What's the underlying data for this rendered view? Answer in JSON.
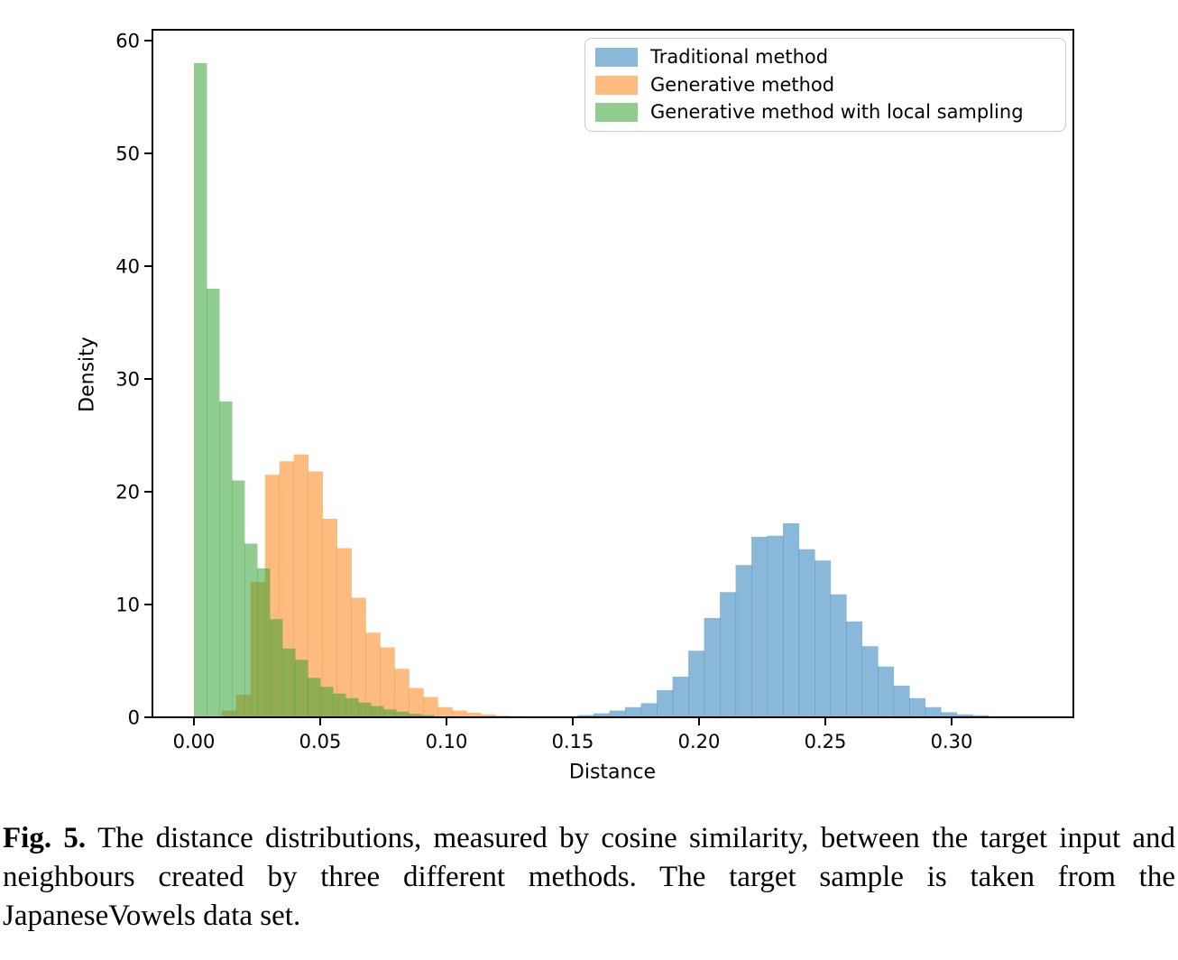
{
  "figure": {
    "caption_label": "Fig. 5.",
    "caption_text": "The distance distributions, measured by cosine similarity, between the target input and neighbours created by three different methods. The target sample is taken from the JapaneseVowels data set."
  },
  "chart_data": {
    "type": "bar",
    "variant": "overlaid-histograms",
    "title": "",
    "xlabel": "Distance",
    "ylabel": "Density",
    "xlim": [
      -0.016,
      0.348
    ],
    "ylim": [
      0,
      60
    ],
    "grid": false,
    "legend_position": "upper right",
    "x_ticks": [
      0.0,
      0.05,
      0.1,
      0.15,
      0.2,
      0.25,
      0.3
    ],
    "x_tick_labels": [
      "0.00",
      "0.05",
      "0.10",
      "0.15",
      "0.20",
      "0.25",
      "0.30"
    ],
    "y_ticks": [
      0,
      10,
      20,
      30,
      40,
      50,
      60
    ],
    "y_tick_labels": [
      "0",
      "10",
      "20",
      "30",
      "40",
      "50",
      "60"
    ],
    "series": [
      {
        "name": "Traditional method",
        "color": "#1f77b4",
        "alpha": 0.52,
        "bin_start": 0.152,
        "bin_width": 0.00625,
        "densities": [
          0.2,
          0.35,
          0.6,
          0.9,
          1.25,
          2.4,
          3.6,
          5.9,
          8.8,
          11.1,
          13.5,
          16.0,
          16.1,
          17.2,
          14.9,
          13.9,
          10.9,
          8.5,
          6.3,
          4.5,
          2.8,
          1.7,
          0.9,
          0.45,
          0.26,
          0.18
        ]
      },
      {
        "name": "Generative method",
        "color": "#ff7f0e",
        "alpha": 0.52,
        "bin_start": 0.011,
        "bin_width": 0.0057,
        "densities": [
          0.6,
          2.0,
          12.0,
          21.5,
          22.7,
          23.3,
          21.8,
          17.6,
          15.0,
          10.6,
          7.5,
          6.2,
          4.3,
          2.6,
          1.8,
          0.9,
          0.6,
          0.4,
          0.25,
          0.15,
          0.1
        ]
      },
      {
        "name": "Generative method with local sampling",
        "color": "#2ca02c",
        "alpha": 0.52,
        "bin_start": 0.0,
        "bin_width": 0.005,
        "densities": [
          58,
          38,
          28,
          21,
          15.4,
          13.2,
          8.7,
          6.1,
          5.1,
          3.5,
          2.7,
          2.1,
          1.7,
          1.3,
          1.0,
          0.7,
          0.5,
          0.3,
          0.2
        ]
      }
    ]
  }
}
